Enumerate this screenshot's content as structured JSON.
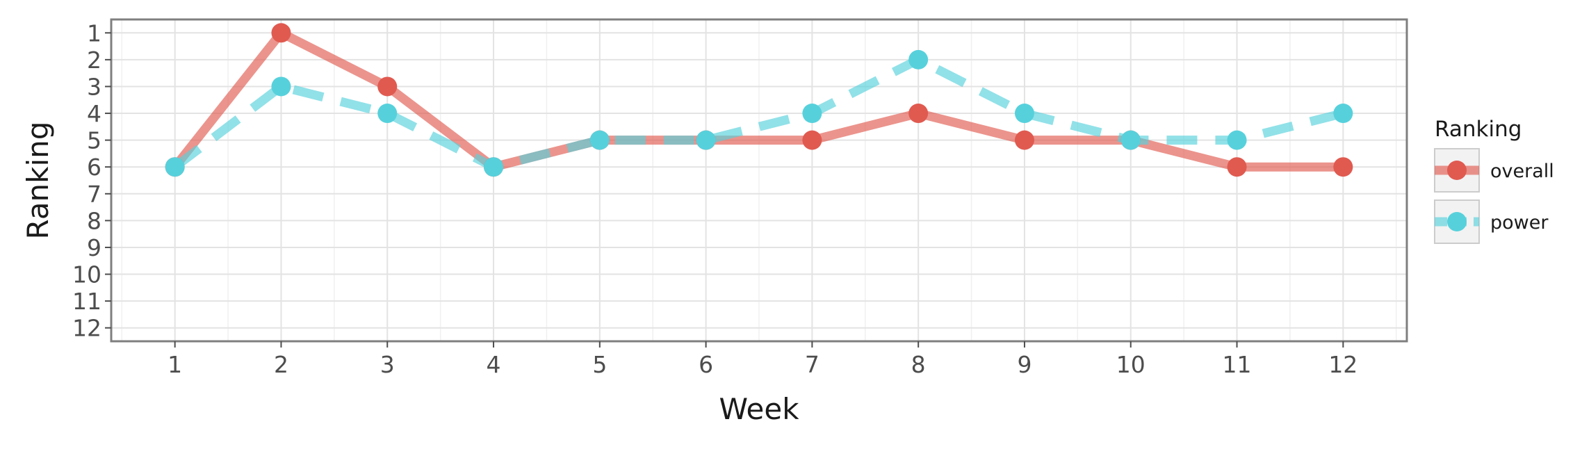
{
  "chart_data": {
    "type": "line",
    "title": "",
    "xlabel": "Week",
    "ylabel": "Ranking",
    "x": [
      1,
      2,
      3,
      4,
      5,
      6,
      7,
      8,
      9,
      10,
      11,
      12
    ],
    "x_ticks": [
      "1",
      "2",
      "3",
      "4",
      "5",
      "6",
      "7",
      "8",
      "9",
      "10",
      "11",
      "12"
    ],
    "y_ticks": [
      "1",
      "2",
      "3",
      "4",
      "5",
      "6",
      "7",
      "8",
      "9",
      "10",
      "11",
      "12"
    ],
    "xlim": [
      0.4,
      12.6
    ],
    "ylim": [
      12.5,
      0.5
    ],
    "y_reversed": true,
    "grid": true,
    "legend": {
      "title": "Ranking",
      "position": "right"
    },
    "series": [
      {
        "name": "overall",
        "color": "#e05a50",
        "line_style": "solid",
        "values": [
          6,
          1,
          3,
          6,
          5,
          5,
          5,
          4,
          5,
          5,
          6,
          6
        ]
      },
      {
        "name": "power",
        "color": "#56d1dc",
        "line_style": "dashed",
        "values": [
          6,
          3,
          4,
          6,
          5,
          5,
          4,
          2,
          4,
          5,
          5,
          4
        ]
      }
    ]
  }
}
